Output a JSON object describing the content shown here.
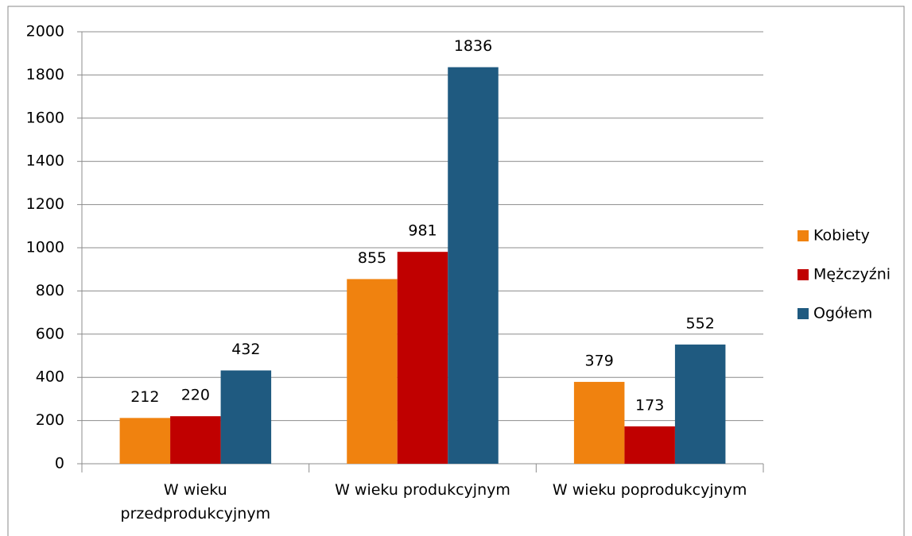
{
  "chart_data": {
    "type": "bar",
    "categories": [
      "W wieku przedprodukcyjnym",
      "W wieku produkcyjnym",
      "W wieku poprodukcyjnym"
    ],
    "series": [
      {
        "name": "Kobiety",
        "color": "#f0820f",
        "values": [
          212,
          855,
          379
        ]
      },
      {
        "name": "Mężczyźni",
        "color": "#c00000",
        "values": [
          220,
          981,
          173
        ]
      },
      {
        "name": "Ogółem",
        "color": "#1f5a80",
        "values": [
          432,
          1836,
          552
        ]
      }
    ],
    "ylim": [
      0,
      2000
    ],
    "yticks": [
      0,
      200,
      400,
      600,
      800,
      1000,
      1200,
      1400,
      1600,
      1800,
      2000
    ],
    "grid": true,
    "legend": "right"
  }
}
